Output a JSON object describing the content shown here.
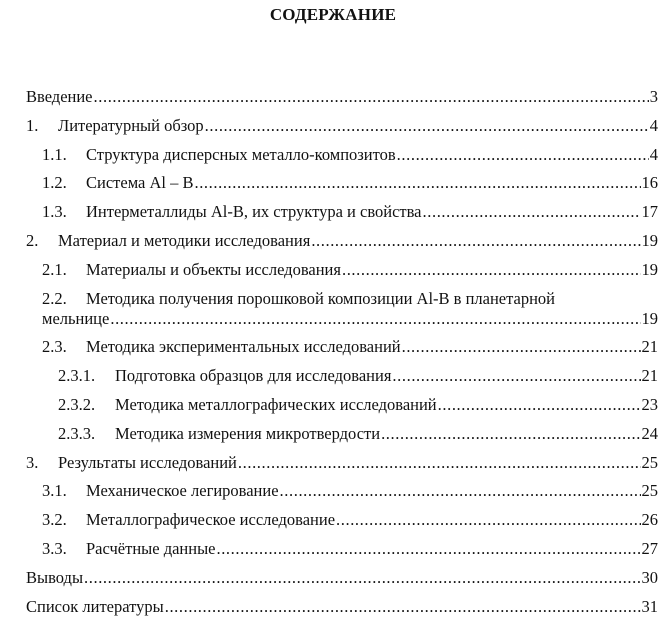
{
  "title": "СОДЕРЖАНИЕ",
  "entries": [
    {
      "level": 0,
      "number": "",
      "title": "Введение",
      "page": "3"
    },
    {
      "level": 1,
      "number": "1.",
      "title": "Литературный обзор",
      "page": "4"
    },
    {
      "level": 2,
      "number": "1.1.",
      "title": "Структура дисперсных металло-композитов",
      "page": "4"
    },
    {
      "level": 2,
      "number": "1.2.",
      "title": "Система Al – B",
      "page": "16"
    },
    {
      "level": 2,
      "number": "1.3.",
      "title": "Интерметаллиды Al-B, их структура и свойства",
      "page": "17"
    },
    {
      "level": 1,
      "number": "2.",
      "title": "Материал и методики исследования",
      "page": "19"
    },
    {
      "level": 2,
      "number": "2.1.",
      "title": "Материалы и объекты исследования",
      "page": "19"
    },
    {
      "level": 2,
      "number": "2.2.",
      "title": "Методика получения порошковой композиции Al-B в планетарной",
      "title_cont": "мельнице",
      "page": "19"
    },
    {
      "level": 2,
      "number": "2.3.",
      "title": "Методика экспериментальных исследований",
      "page": "21"
    },
    {
      "level": 3,
      "number": "2.3.1.",
      "title": "Подготовка образцов для исследования",
      "page": "21"
    },
    {
      "level": 3,
      "number": "2.3.2.",
      "title": "Методика металлографических исследований",
      "page": "23"
    },
    {
      "level": 3,
      "number": "2.3.3.",
      "title": "Методика измерения микротвердости",
      "page": "24"
    },
    {
      "level": 1,
      "number": "3.",
      "title": "Результаты исследований",
      "page": "25"
    },
    {
      "level": 2,
      "number": "3.1.",
      "title": "Механическое легирование",
      "page": "25"
    },
    {
      "level": 2,
      "number": "3.2.",
      "title": "Металлографическое исследование",
      "page": "26"
    },
    {
      "level": 2,
      "number": "3.3.",
      "title": "Расчётные данные",
      "page": "27"
    },
    {
      "level": 0,
      "number": "",
      "title": "Выводы",
      "page": "30"
    },
    {
      "level": 0,
      "number": "",
      "title": "Список литературы",
      "page": "31"
    }
  ]
}
